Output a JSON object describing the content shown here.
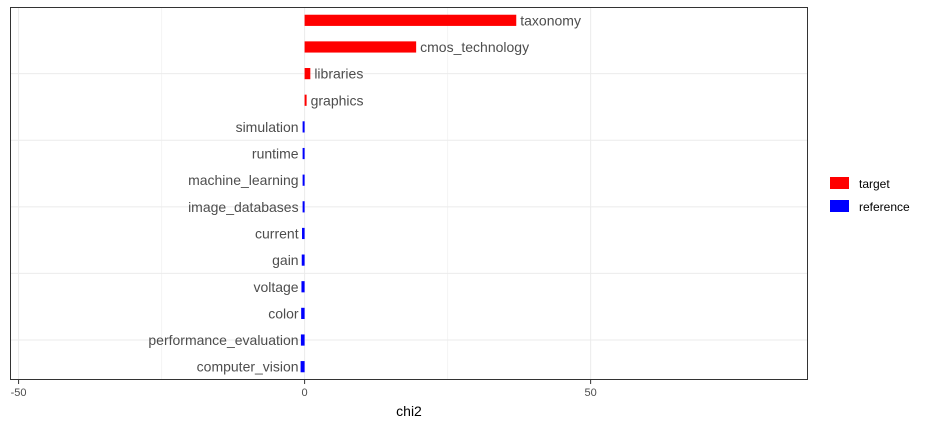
{
  "chart_data": {
    "type": "bar",
    "orientation": "horizontal",
    "xlabel": "chi2",
    "ylabel": "",
    "xlim": [
      -51.5,
      88
    ],
    "xticks": [
      -50,
      0,
      50
    ],
    "grid": true,
    "legend_position": "right",
    "legend": [
      {
        "name": "target",
        "color": "#ff0000"
      },
      {
        "name": "reference",
        "color": "#0000ff"
      }
    ],
    "bars": [
      {
        "label": "taxonomy",
        "value": 37.0,
        "group": "target"
      },
      {
        "label": "cmos_technology",
        "value": 19.5,
        "group": "target"
      },
      {
        "label": "libraries",
        "value": 1.0,
        "group": "target"
      },
      {
        "label": "graphics",
        "value": 0.3,
        "group": "target"
      },
      {
        "label": "simulation",
        "value": -0.2,
        "group": "reference"
      },
      {
        "label": "runtime",
        "value": -0.25,
        "group": "reference"
      },
      {
        "label": "machine_learning",
        "value": -0.3,
        "group": "reference"
      },
      {
        "label": "image_databases",
        "value": -0.35,
        "group": "reference"
      },
      {
        "label": "current",
        "value": -0.45,
        "group": "reference"
      },
      {
        "label": "gain",
        "value": -0.5,
        "group": "reference"
      },
      {
        "label": "voltage",
        "value": -0.55,
        "group": "reference"
      },
      {
        "label": "color",
        "value": -0.6,
        "group": "reference"
      },
      {
        "label": "performance_evaluation",
        "value": -0.65,
        "group": "reference"
      },
      {
        "label": "computer_vision",
        "value": -0.7,
        "group": "reference"
      }
    ]
  }
}
